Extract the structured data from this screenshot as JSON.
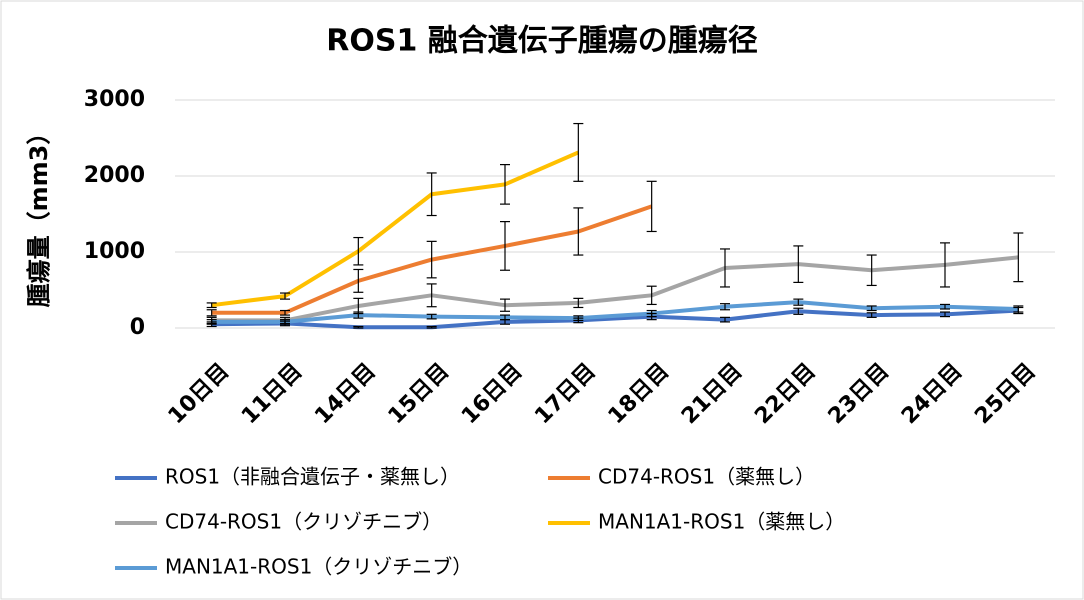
{
  "chart_data": {
    "type": "line",
    "title": "ROS1 融合遺伝子腫瘍の腫瘍径",
    "y_label": "腫瘍量（mm3）",
    "categories": [
      "10日目",
      "11日目",
      "14日目",
      "15日目",
      "16日目",
      "17日目",
      "18日目",
      "21日目",
      "22日目",
      "23日目",
      "24日目",
      "25日目"
    ],
    "ylim": [
      0,
      3000
    ],
    "yticks": [
      0,
      1000,
      2000,
      3000
    ],
    "grid": true,
    "series": [
      {
        "name": "ROS1（非融合遺伝子・薬無し）",
        "color": "#4472c4",
        "values": [
          50,
          60,
          10,
          10,
          80,
          100,
          150,
          110,
          220,
          170,
          180,
          230
        ],
        "errors": [
          30,
          30,
          10,
          10,
          30,
          30,
          40,
          30,
          40,
          30,
          30,
          40
        ]
      },
      {
        "name": "CD74-ROS1（薬無し）",
        "color": "#ed7d31",
        "values": [
          200,
          200,
          620,
          900,
          1080,
          1270,
          1600,
          null,
          null,
          null,
          null,
          null
        ],
        "errors": [
          40,
          30,
          150,
          240,
          320,
          310,
          330,
          null,
          null,
          null,
          null,
          null
        ]
      },
      {
        "name": "CD74-ROS1（クリゾチニブ）",
        "color": "#a5a5a5",
        "values": [
          100,
          100,
          290,
          430,
          300,
          330,
          430,
          790,
          840,
          760,
          830,
          930
        ],
        "errors": [
          40,
          40,
          100,
          150,
          80,
          60,
          120,
          250,
          240,
          200,
          290,
          320
        ]
      },
      {
        "name": "MAN1A1-ROS1（薬無し）",
        "color": "#ffc000",
        "values": [
          300,
          420,
          1010,
          1760,
          1890,
          2310,
          null,
          null,
          null,
          null,
          null,
          null
        ],
        "errors": [
          30,
          40,
          180,
          280,
          260,
          380,
          null,
          null,
          null,
          null,
          null,
          null
        ]
      },
      {
        "name": "MAN1A1-ROS1（クリゾチニブ）",
        "color": "#5b9bd5",
        "values": [
          80,
          80,
          170,
          150,
          140,
          130,
          190,
          280,
          340,
          260,
          280,
          250
        ],
        "errors": [
          30,
          30,
          40,
          30,
          30,
          30,
          40,
          40,
          40,
          30,
          30,
          40
        ]
      }
    ]
  }
}
